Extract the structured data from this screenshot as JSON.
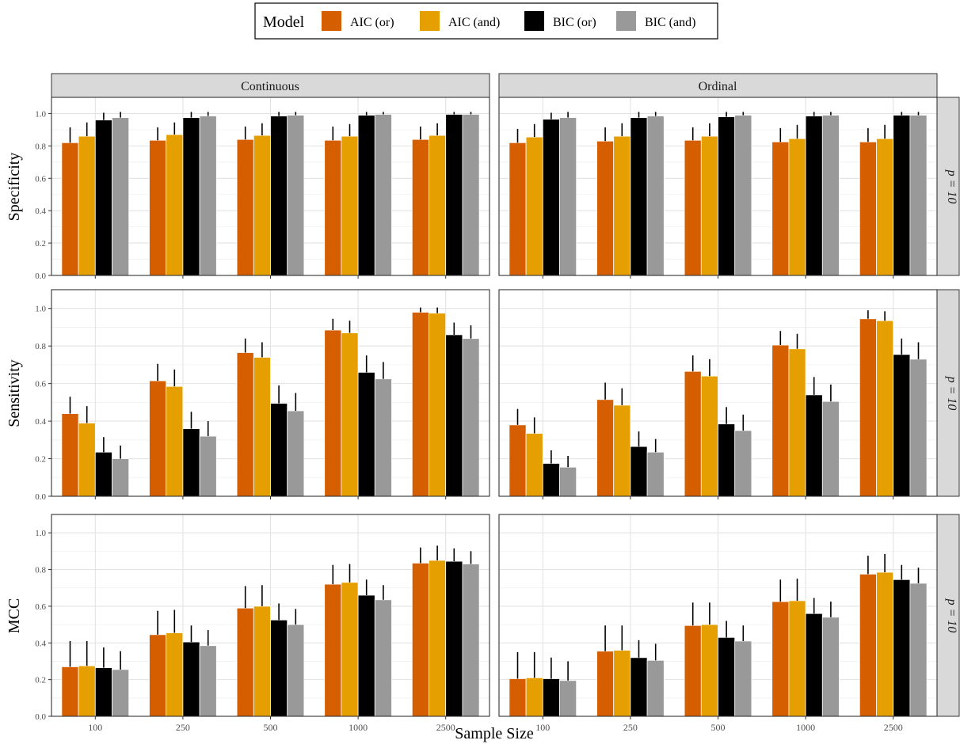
{
  "legend": {
    "title": "Model",
    "entries": [
      {
        "label": "AIC (or)",
        "color": "#D55E00"
      },
      {
        "label": "AIC (and)",
        "color": "#E69F00"
      },
      {
        "label": "BIC (or)",
        "color": "#000000"
      },
      {
        "label": "BIC (and)",
        "color": "#999999"
      }
    ]
  },
  "xlabel": "Sample Size",
  "column_strips": [
    "Continuous",
    "Ordinal"
  ],
  "row_strip_label": "p = 10",
  "yticks": [
    "0.0",
    "0.2",
    "0.4",
    "0.6",
    "0.8",
    "1.0"
  ],
  "chart_data": {
    "type": "bar",
    "categories": [
      "100",
      "250",
      "500",
      "1000",
      "2500"
    ],
    "series_names": [
      "AIC (or)",
      "AIC (and)",
      "BIC (or)",
      "BIC (and)"
    ],
    "ylim": [
      0,
      1.1
    ],
    "grid": true,
    "legend_position": "top",
    "panels": [
      {
        "row": "Specificity",
        "column": "Continuous",
        "series": [
          {
            "name": "AIC (or)",
            "values": [
              0.82,
              0.835,
              0.84,
              0.835,
              0.84
            ],
            "err": [
              0.095,
              0.08,
              0.08,
              0.085,
              0.08
            ]
          },
          {
            "name": "AIC (and)",
            "values": [
              0.86,
              0.87,
              0.865,
              0.86,
              0.865
            ],
            "err": [
              0.085,
              0.075,
              0.075,
              0.075,
              0.075
            ]
          },
          {
            "name": "BIC (or)",
            "values": [
              0.96,
              0.975,
              0.985,
              0.99,
              0.995
            ],
            "err": [
              0.045,
              0.035,
              0.025,
              0.02,
              0.015
            ]
          },
          {
            "name": "BIC (and)",
            "values": [
              0.975,
              0.985,
              0.99,
              0.995,
              0.995
            ],
            "err": [
              0.035,
              0.025,
              0.02,
              0.015,
              0.015
            ]
          }
        ]
      },
      {
        "row": "Specificity",
        "column": "Ordinal",
        "series": [
          {
            "name": "AIC (or)",
            "values": [
              0.82,
              0.83,
              0.835,
              0.825,
              0.825
            ],
            "err": [
              0.085,
              0.085,
              0.08,
              0.085,
              0.085
            ]
          },
          {
            "name": "AIC (and)",
            "values": [
              0.855,
              0.86,
              0.86,
              0.845,
              0.845
            ],
            "err": [
              0.08,
              0.08,
              0.08,
              0.085,
              0.085
            ]
          },
          {
            "name": "BIC (or)",
            "values": [
              0.965,
              0.975,
              0.98,
              0.985,
              0.99
            ],
            "err": [
              0.04,
              0.035,
              0.03,
              0.025,
              0.02
            ]
          },
          {
            "name": "BIC (and)",
            "values": [
              0.975,
              0.985,
              0.99,
              0.99,
              0.99
            ],
            "err": [
              0.035,
              0.025,
              0.02,
              0.02,
              0.02
            ]
          }
        ]
      },
      {
        "row": "Sensitivity",
        "column": "Continuous",
        "series": [
          {
            "name": "AIC (or)",
            "values": [
              0.44,
              0.615,
              0.765,
              0.885,
              0.98
            ],
            "err": [
              0.09,
              0.09,
              0.075,
              0.06,
              0.025
            ]
          },
          {
            "name": "AIC (and)",
            "values": [
              0.39,
              0.585,
              0.74,
              0.87,
              0.975
            ],
            "err": [
              0.09,
              0.09,
              0.08,
              0.065,
              0.03
            ]
          },
          {
            "name": "BIC (or)",
            "values": [
              0.235,
              0.36,
              0.495,
              0.66,
              0.86
            ],
            "err": [
              0.08,
              0.09,
              0.095,
              0.09,
              0.065
            ]
          },
          {
            "name": "BIC (and)",
            "values": [
              0.2,
              0.32,
              0.455,
              0.625,
              0.84
            ],
            "err": [
              0.07,
              0.08,
              0.095,
              0.09,
              0.07
            ]
          }
        ]
      },
      {
        "row": "Sensitivity",
        "column": "Ordinal",
        "series": [
          {
            "name": "AIC (or)",
            "values": [
              0.38,
              0.515,
              0.665,
              0.805,
              0.945
            ],
            "err": [
              0.085,
              0.09,
              0.085,
              0.075,
              0.045
            ]
          },
          {
            "name": "AIC (and)",
            "values": [
              0.335,
              0.485,
              0.64,
              0.785,
              0.935
            ],
            "err": [
              0.085,
              0.09,
              0.09,
              0.08,
              0.05
            ]
          },
          {
            "name": "BIC (or)",
            "values": [
              0.175,
              0.265,
              0.385,
              0.54,
              0.755
            ],
            "err": [
              0.07,
              0.08,
              0.09,
              0.095,
              0.085
            ]
          },
          {
            "name": "BIC (and)",
            "values": [
              0.155,
              0.235,
              0.35,
              0.505,
              0.73
            ],
            "err": [
              0.06,
              0.07,
              0.085,
              0.09,
              0.09
            ]
          }
        ]
      },
      {
        "row": "MCC",
        "column": "Continuous",
        "series": [
          {
            "name": "AIC (or)",
            "values": [
              0.27,
              0.445,
              0.59,
              0.72,
              0.835
            ],
            "err": [
              0.14,
              0.13,
              0.12,
              0.105,
              0.085
            ]
          },
          {
            "name": "AIC (and)",
            "values": [
              0.275,
              0.455,
              0.6,
              0.73,
              0.85
            ],
            "err": [
              0.135,
              0.125,
              0.115,
              0.1,
              0.08
            ]
          },
          {
            "name": "BIC (or)",
            "values": [
              0.265,
              0.405,
              0.525,
              0.66,
              0.845
            ],
            "err": [
              0.11,
              0.09,
              0.09,
              0.085,
              0.07
            ]
          },
          {
            "name": "BIC (and)",
            "values": [
              0.255,
              0.385,
              0.5,
              0.635,
              0.83
            ],
            "err": [
              0.1,
              0.085,
              0.085,
              0.08,
              0.07
            ]
          }
        ]
      },
      {
        "row": "MCC",
        "column": "Ordinal",
        "series": [
          {
            "name": "AIC (or)",
            "values": [
              0.205,
              0.355,
              0.495,
              0.625,
              0.775
            ],
            "err": [
              0.145,
              0.14,
              0.125,
              0.12,
              0.1
            ]
          },
          {
            "name": "AIC (and)",
            "values": [
              0.21,
              0.36,
              0.5,
              0.63,
              0.785
            ],
            "err": [
              0.14,
              0.135,
              0.12,
              0.12,
              0.1
            ]
          },
          {
            "name": "BIC (or)",
            "values": [
              0.205,
              0.32,
              0.43,
              0.56,
              0.745
            ],
            "err": [
              0.115,
              0.095,
              0.09,
              0.085,
              0.08
            ]
          },
          {
            "name": "BIC (and)",
            "values": [
              0.195,
              0.305,
              0.41,
              0.54,
              0.725
            ],
            "err": [
              0.105,
              0.09,
              0.085,
              0.085,
              0.085
            ]
          }
        ]
      }
    ]
  }
}
